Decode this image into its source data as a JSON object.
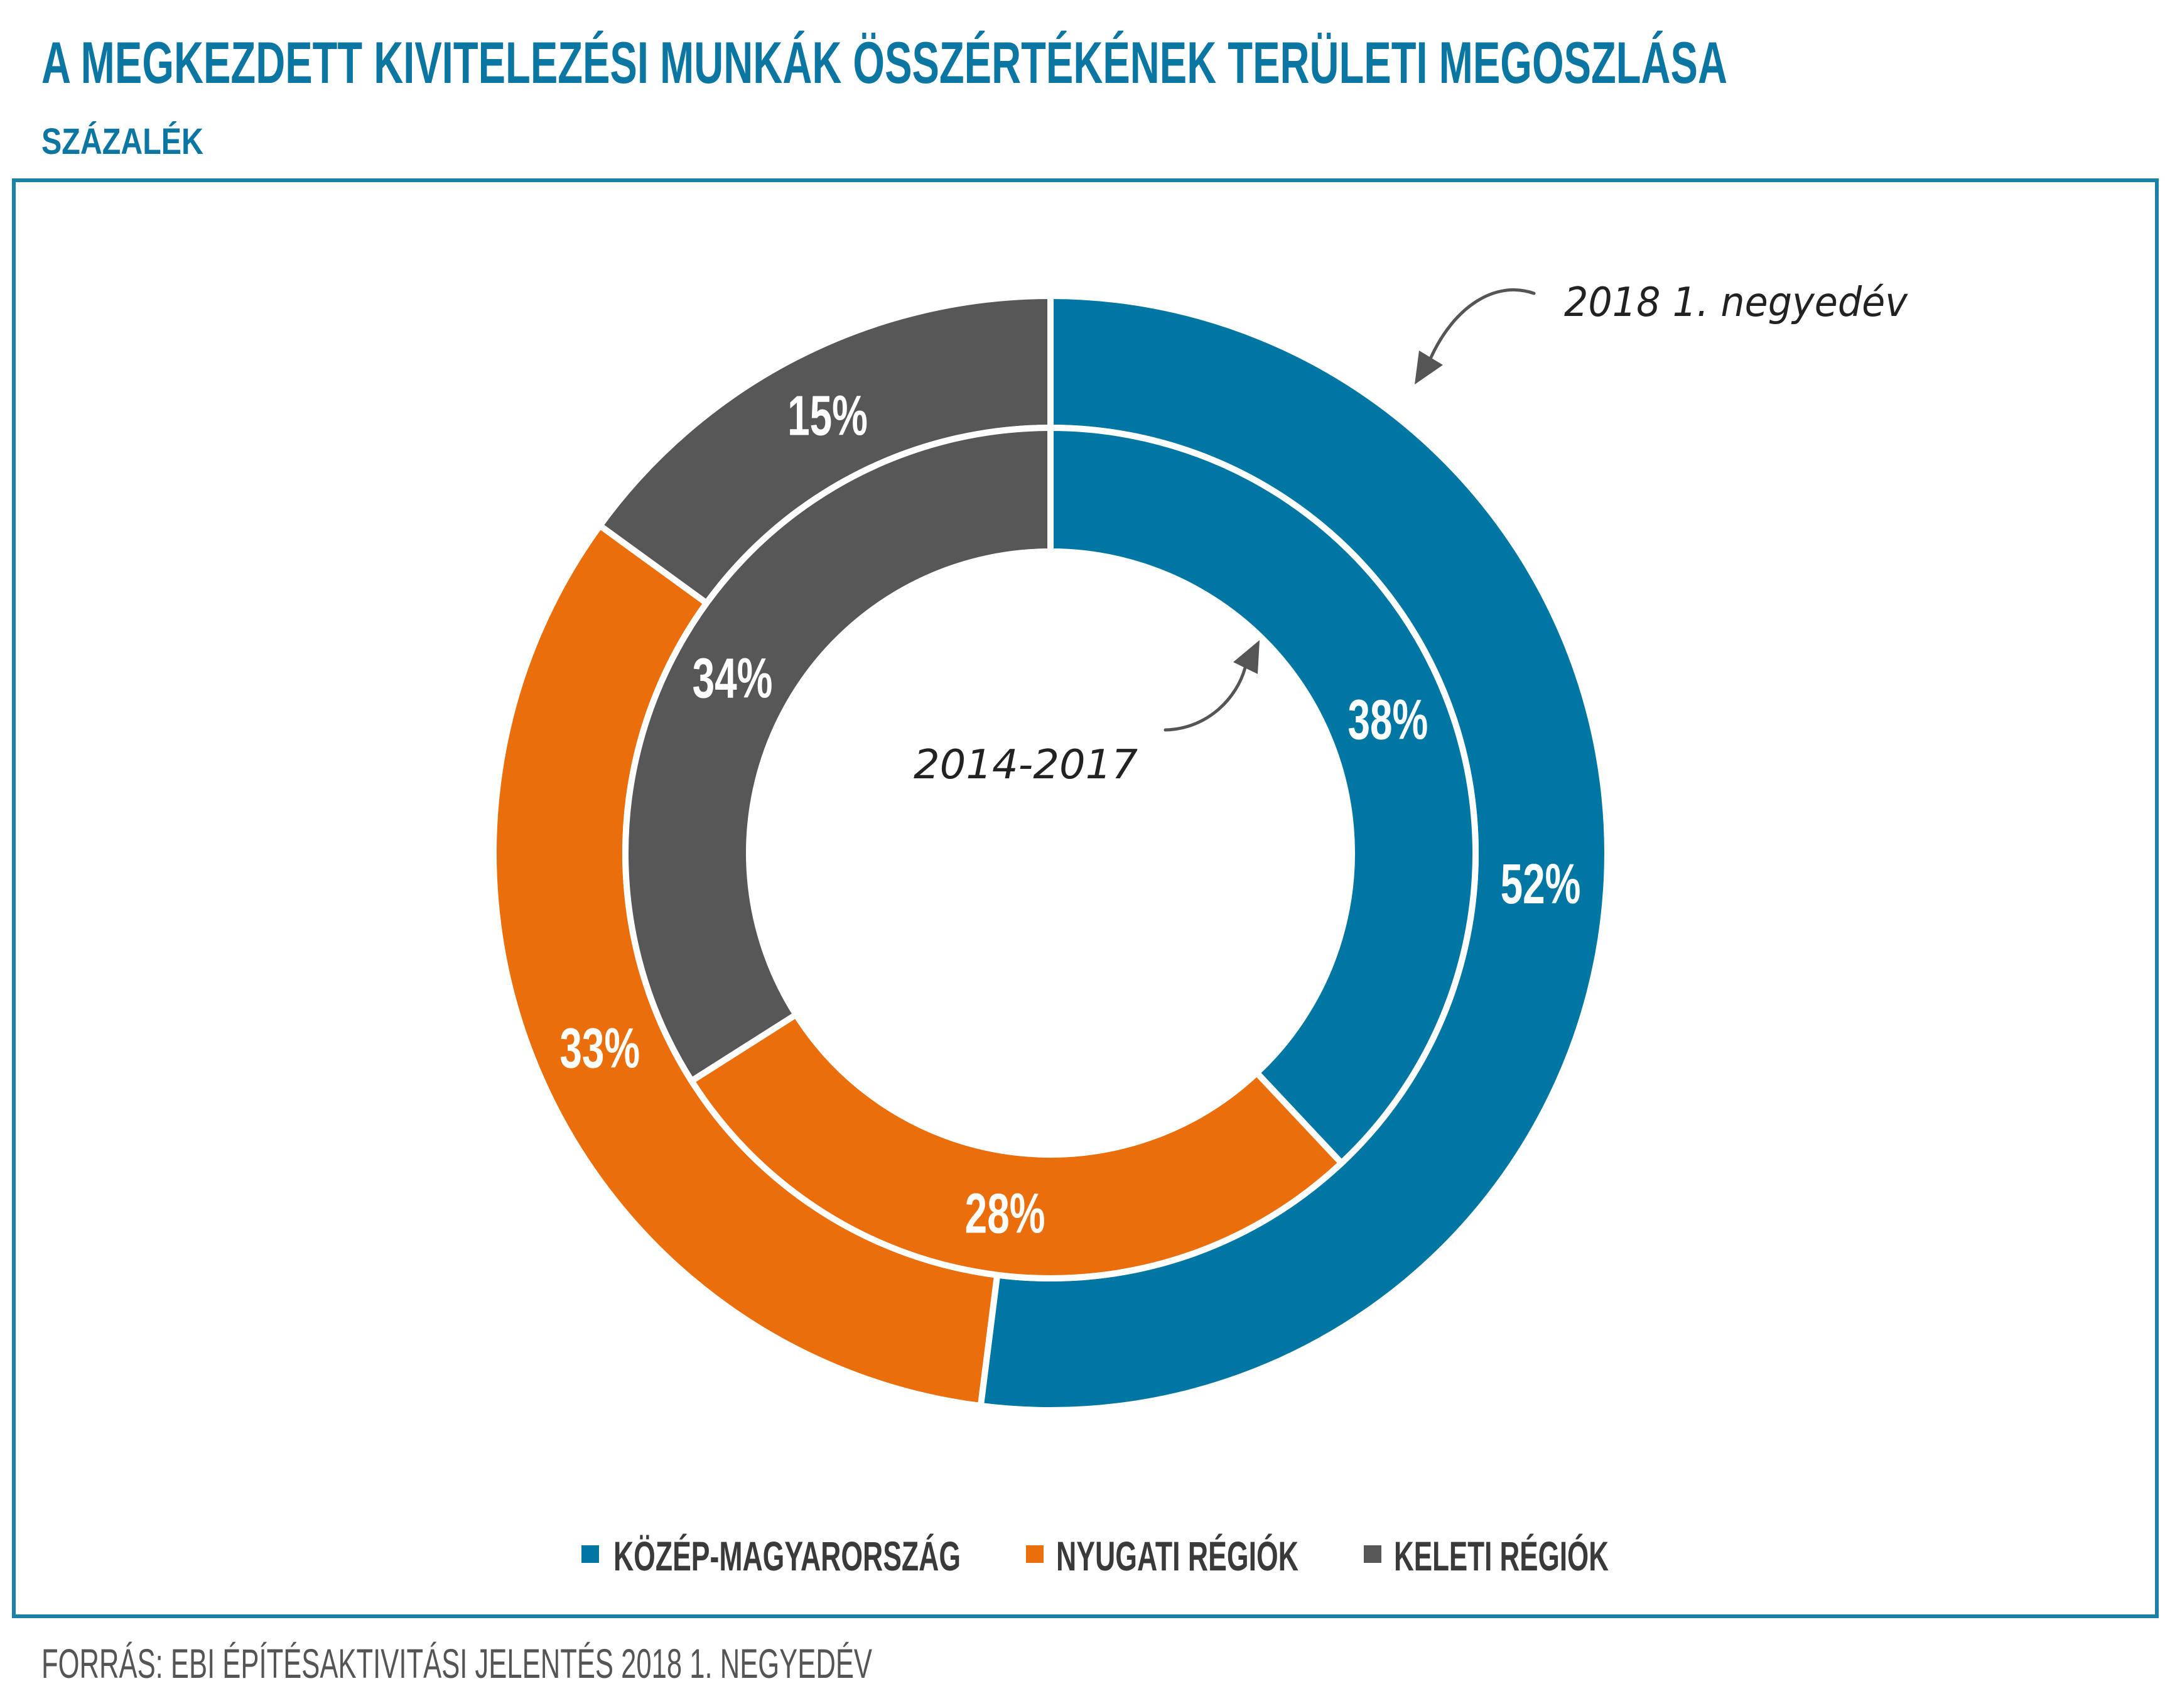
{
  "source": "FORRÁS: EBI ÉPÍTÉSAKTIVITÁSI JELENTÉS 2018 1. NEGYEDÉV",
  "theme": {
    "title": "#0b76a2",
    "frame": "#1a80a8",
    "legend_text": "#3a3a3a",
    "source_text": "#555555",
    "note_text": "#222222",
    "arrow": "#555555"
  },
  "chart_data": {
    "type": "pie",
    "title": "A MEGKEZDETT KIVITELEZÉSI MUNKÁK ÖSSZÉRTÉKÉNEK TERÜLETI MEGOSZLÁSA",
    "subtitle": "SZÁZALÉK",
    "legend": "bottom",
    "categories": [
      "KÖZÉP-MAGYARORSZÁG",
      "NYUGATI RÉGIÓK",
      "KELETI RÉGIÓK"
    ],
    "colors": [
      "#0077a3",
      "#ea6e0b",
      "#575757"
    ],
    "series": [
      {
        "name": "2018 1. negyedév",
        "values": [
          52,
          33,
          15
        ],
        "labels": [
          "52%",
          "33%",
          "15%"
        ]
      },
      {
        "name": "2014-2017",
        "values": [
          38,
          28,
          34
        ],
        "labels": [
          "38%",
          "28%",
          "34%"
        ]
      }
    ]
  }
}
